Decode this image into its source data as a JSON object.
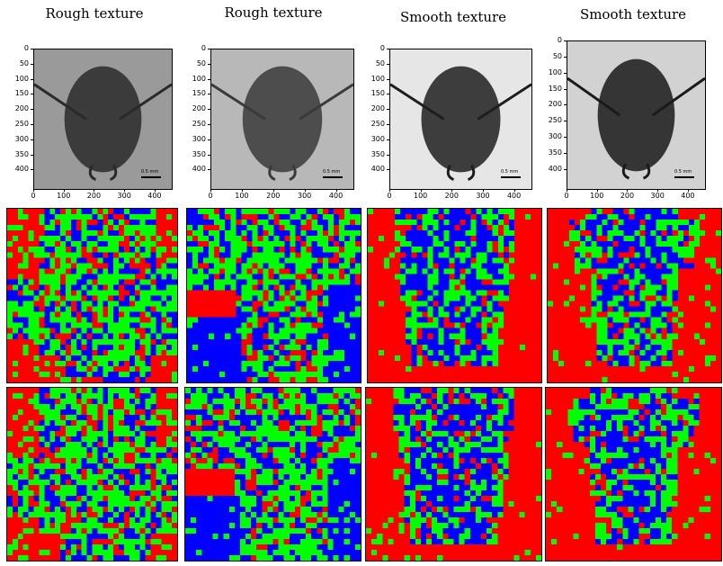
{
  "figure": {
    "columns": [
      {
        "title": "Rough texture",
        "scale_label": "0.5 mm"
      },
      {
        "title": "Rough texture",
        "scale_label": "0.5 mm"
      },
      {
        "title": "Smooth texture",
        "scale_label": "0.5 mm"
      },
      {
        "title": "Smooth texture",
        "scale_label": "0.5 mm"
      }
    ],
    "y_ticks": [
      "0",
      "50",
      "100",
      "150",
      "200",
      "250",
      "300",
      "350",
      "400"
    ],
    "x_ticks": [
      "0",
      "100",
      "200",
      "300",
      "400"
    ],
    "texture_map": {
      "grid_size": 32,
      "colors": {
        "red": "#ff0000",
        "green": "#00ff00",
        "blue": "#0000ff"
      }
    }
  }
}
